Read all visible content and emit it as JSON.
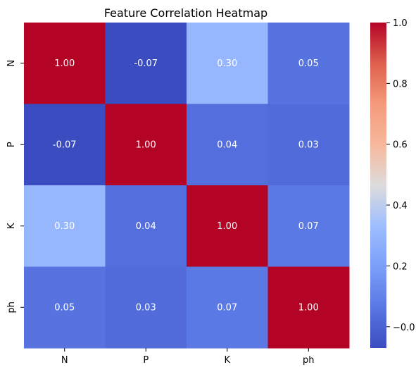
{
  "chart_data": {
    "type": "heatmap",
    "title": "Feature Correlation Heatmap",
    "xlabel": "",
    "ylabel": "",
    "x_categories": [
      "N",
      "P",
      "K",
      "ph"
    ],
    "y_categories": [
      "N",
      "P",
      "K",
      "ph"
    ],
    "values": [
      [
        1.0,
        -0.07,
        0.3,
        0.05
      ],
      [
        -0.07,
        1.0,
        0.04,
        0.03
      ],
      [
        0.3,
        0.04,
        1.0,
        0.07
      ],
      [
        0.05,
        0.03,
        0.07,
        1.0
      ]
    ],
    "cell_labels": [
      [
        "1.00",
        "-0.07",
        "0.30",
        "0.05"
      ],
      [
        "-0.07",
        "1.00",
        "0.04",
        "0.03"
      ],
      [
        "0.30",
        "0.04",
        "1.00",
        "0.07"
      ],
      [
        "0.05",
        "0.03",
        "0.07",
        "1.00"
      ]
    ],
    "colormap": "coolwarm",
    "colorbar": {
      "range": [
        -0.07,
        1.0
      ],
      "ticks": [
        -0.0,
        0.2,
        0.4,
        0.6,
        0.8,
        1.0
      ],
      "tick_labels": [
        "−0.0",
        "0.2",
        "0.4",
        "0.6",
        "0.8",
        "1.0"
      ]
    },
    "grid": false,
    "legend": "colorbar-right"
  }
}
